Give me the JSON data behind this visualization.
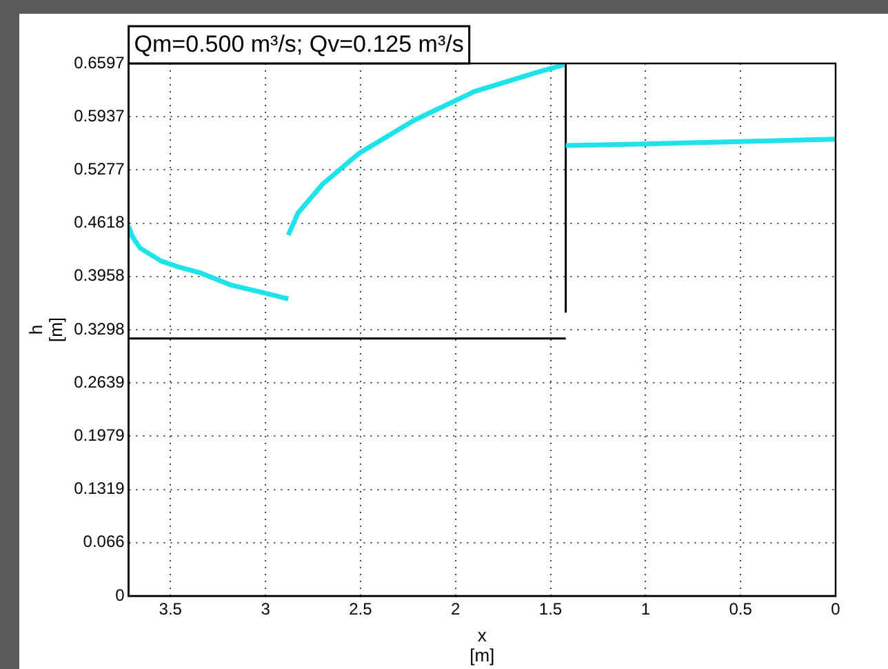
{
  "chart_data": {
    "type": "line",
    "title": "Qm=0.500 m³/s; Qv=0.125 m³/s",
    "xlabel": "x\n[m]",
    "ylabel": "h\n[m]",
    "xlim": [
      3.72,
      0
    ],
    "xticks": [
      3.5,
      3,
      2.5,
      2,
      1.5,
      1,
      0.5,
      0
    ],
    "ylim": [
      0,
      0.6597
    ],
    "yticks": [
      0,
      0.066,
      0.1319,
      0.1979,
      0.2639,
      0.3298,
      0.3958,
      0.4618,
      0.5277,
      0.5937,
      0.6597
    ],
    "grid": true,
    "series": [
      {
        "color": "#1ee3ea",
        "x": [
          3.72,
          3.7,
          3.66,
          3.55,
          3.45,
          3.34,
          3.18,
          3.0,
          2.88
        ],
        "values": [
          0.458,
          0.445,
          0.431,
          0.415,
          0.407,
          0.4,
          0.385,
          0.375,
          0.368
        ]
      },
      {
        "color": "#1ee3ea",
        "x": [
          2.88,
          2.83,
          2.7,
          2.51,
          2.22,
          1.9,
          1.58,
          1.43
        ],
        "values": [
          0.447,
          0.474,
          0.51,
          0.548,
          0.589,
          0.625,
          0.648,
          0.658
        ]
      },
      {
        "color": "#1ee3ea",
        "x": [
          1.42,
          1.0,
          0.5,
          0
        ],
        "values": [
          0.558,
          0.56,
          0.563,
          0.566
        ]
      },
      {
        "color": "#000000",
        "x": [
          3.72,
          1.42
        ],
        "values": [
          0.319,
          0.319
        ]
      },
      {
        "color": "#000000",
        "x": [
          1.42,
          1.42
        ],
        "values": [
          0.351,
          0.6597
        ]
      }
    ]
  }
}
